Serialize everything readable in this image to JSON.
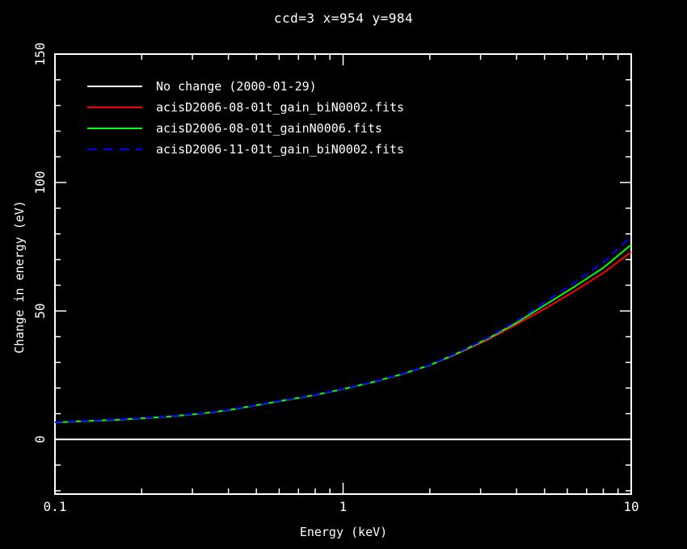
{
  "chart_data": {
    "type": "line",
    "title": "ccd=3 x=954 y=984",
    "xlabel": "Energy (keV)",
    "ylabel": "Change in energy (eV)",
    "x_scale": "log",
    "xlim": [
      0.1,
      10
    ],
    "ylim": [
      -21.3,
      150
    ],
    "grid": false,
    "legend_position": "top-left-inside",
    "background_color": "#000000",
    "axis_color": "#ffffff",
    "x_major_ticks": [
      0.1,
      1,
      10
    ],
    "x_minor_ticks": [
      0.2,
      0.3,
      0.4,
      0.5,
      0.6,
      0.7,
      0.8,
      0.9,
      2,
      3,
      4,
      5,
      6,
      7,
      8,
      9
    ],
    "y_major_ticks": [
      0,
      50,
      100,
      150
    ],
    "y_minor_ticks": [
      -20,
      -10,
      10,
      20,
      30,
      40,
      60,
      70,
      80,
      90,
      110,
      120,
      130,
      140
    ],
    "x_tick_labels": [
      {
        "value": 0.1,
        "label": "0.1"
      },
      {
        "value": 1,
        "label": "1"
      },
      {
        "value": 10,
        "label": "10"
      }
    ],
    "y_tick_labels": [
      {
        "value": 0,
        "label": "0"
      },
      {
        "value": 50,
        "label": "50"
      },
      {
        "value": 100,
        "label": "100"
      },
      {
        "value": 150,
        "label": "150"
      }
    ],
    "x": [
      0.1,
      0.125,
      0.16,
      0.2,
      0.25,
      0.32,
      0.4,
      0.5,
      0.63,
      0.8,
      1.0,
      1.25,
      1.6,
      2.0,
      2.5,
      3.2,
      4.0,
      5.0,
      6.3,
      8.0,
      10.0
    ],
    "series": [
      {
        "name": "No change (2000-01-29)",
        "color": "#ffffff",
        "dash": "solid",
        "width": 2,
        "values": [
          0,
          0,
          0,
          0,
          0,
          0,
          0,
          0,
          0,
          0,
          0,
          0,
          0,
          0,
          0,
          0,
          0,
          0,
          0,
          0,
          0
        ]
      },
      {
        "name": "acisD2006-08-01t_gain_biN0002.fits",
        "color": "#ff0000",
        "dash": "solid",
        "width": 2,
        "values": [
          6.6,
          7.1,
          7.6,
          8.2,
          8.9,
          10.0,
          11.4,
          13.3,
          15.3,
          17.3,
          19.6,
          22.1,
          25.4,
          28.9,
          33.4,
          39.0,
          44.8,
          50.8,
          57.5,
          64.8,
          73.0
        ]
      },
      {
        "name": "acisD2006-08-01t_gainN0006.fits",
        "color": "#00ff00",
        "dash": "solid",
        "width": 2,
        "values": [
          6.6,
          7.1,
          7.6,
          8.2,
          8.9,
          10.0,
          11.4,
          13.3,
          15.3,
          17.3,
          19.6,
          22.1,
          25.4,
          28.9,
          33.6,
          39.4,
          45.4,
          52.2,
          59.2,
          66.8,
          75.8
        ]
      },
      {
        "name": "acisD2006-11-01t_gain_biN0002.fits",
        "color": "#0000ff",
        "dash": "dashed",
        "width": 2,
        "values": [
          6.7,
          7.2,
          7.7,
          8.3,
          9.0,
          10.1,
          11.5,
          13.4,
          15.4,
          17.4,
          19.7,
          22.2,
          25.5,
          29.0,
          33.8,
          39.7,
          46.0,
          53.3,
          60.7,
          68.9,
          79.0
        ]
      }
    ]
  }
}
